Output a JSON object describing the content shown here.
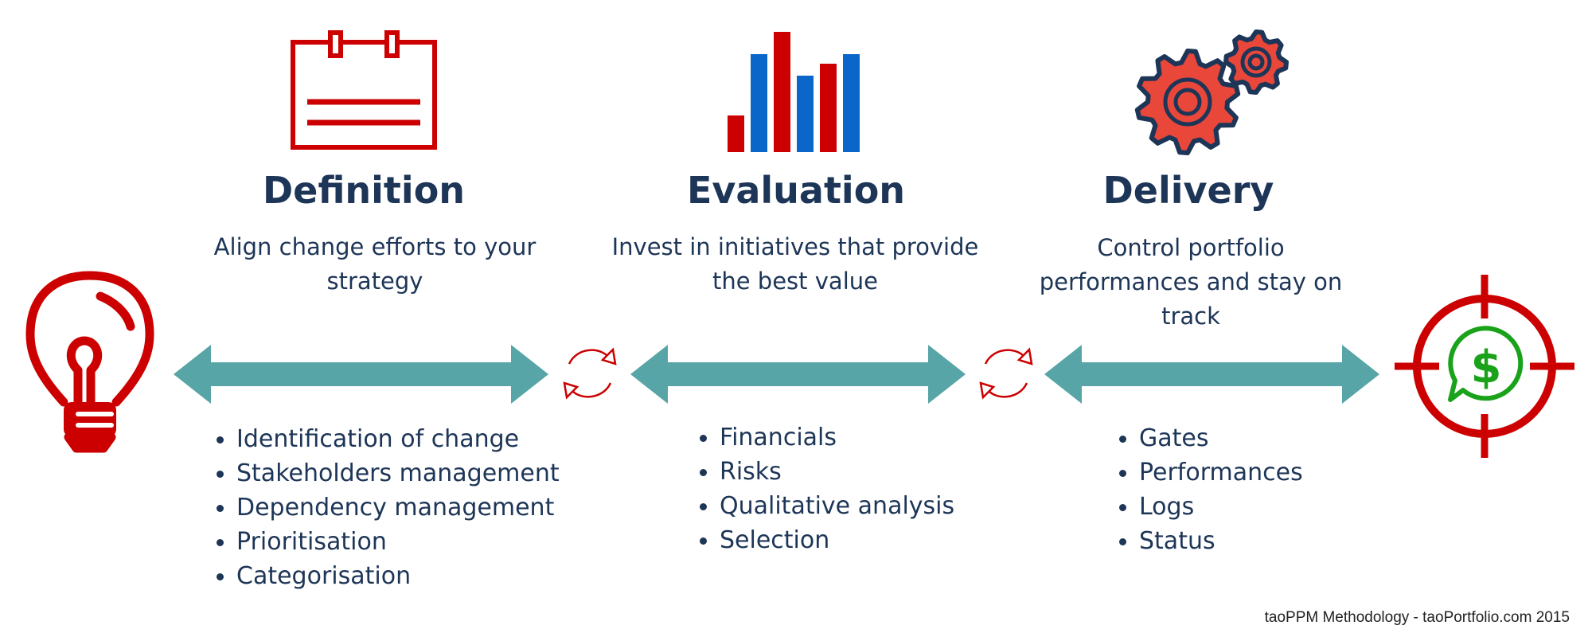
{
  "colors": {
    "navy": "#1d3557",
    "red": "#cc0000",
    "blue": "#0a66c9",
    "teal": "#57a5a6",
    "gear_orange": "#e8473a",
    "green": "#1aa31a"
  },
  "icons": {
    "start": "lightbulb-icon",
    "definition": "calendar-icon",
    "evaluation": "bar-chart-icon",
    "delivery": "gears-icon",
    "cycle": "refresh-cycle-icon",
    "end": "target-dollar-icon"
  },
  "stages": [
    {
      "title": "Definition",
      "subtitle": "Align change efforts to your strategy",
      "items": [
        "Identification of change",
        "Stakeholders management",
        "Dependency management",
        "Prioritisation",
        "Categorisation"
      ]
    },
    {
      "title": "Evaluation",
      "subtitle": "Invest in initiatives that provide the best value",
      "items": [
        "Financials",
        "Risks",
        "Qualitative analysis",
        "Selection"
      ]
    },
    {
      "title": "Delivery",
      "subtitle": "Control portfolio performances and stay on track",
      "items": [
        "Gates",
        "Performances",
        "Logs",
        "Status"
      ]
    }
  ],
  "footer": "taoPPM Methodology - taoPortfolio.com 2015"
}
